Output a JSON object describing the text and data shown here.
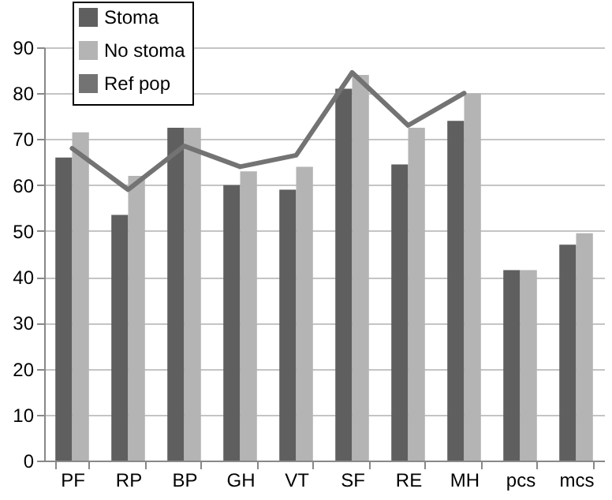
{
  "chart_data": {
    "type": "bar",
    "categories": [
      "PF",
      "RP",
      "BP",
      "GH",
      "VT",
      "SF",
      "RE",
      "MH",
      "pcs",
      "mcs"
    ],
    "series": [
      {
        "name": "Stoma",
        "color": "#5f5f5f",
        "values": [
          66,
          53.5,
          72.5,
          60,
          59,
          81,
          64.5,
          74,
          41.5,
          47
        ]
      },
      {
        "name": "No stoma",
        "color": "#b4b4b4",
        "values": [
          71.5,
          62,
          72.5,
          63,
          64,
          84,
          72.5,
          80,
          41.5,
          49.5
        ]
      },
      {
        "name": "Ref pop",
        "type": "line",
        "color": "#737373",
        "values": [
          68,
          59,
          68.5,
          64,
          66.5,
          84.5,
          73,
          80,
          null,
          null
        ]
      }
    ],
    "ylim": [
      0,
      90
    ],
    "yticks": [
      0,
      10,
      20,
      30,
      40,
      50,
      60,
      70,
      80,
      90
    ],
    "grid": "y",
    "legend": "top left"
  }
}
